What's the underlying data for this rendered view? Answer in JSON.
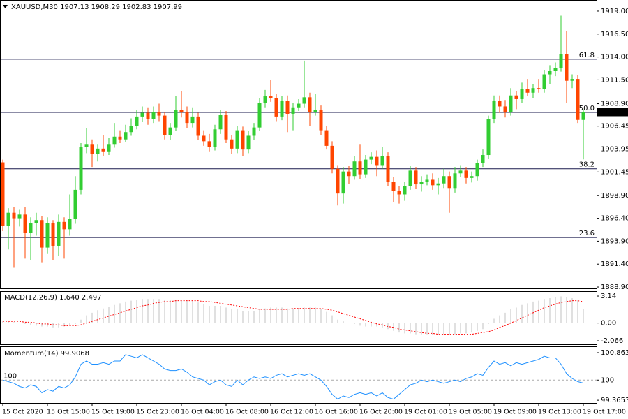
{
  "chart_data": [
    {
      "type": "candlestick",
      "title": "XAUUSD,M30 1907.13 1908.29 1902.83 1907.99",
      "categories": [
        "15 Oct 2020",
        null,
        null,
        null,
        null,
        null,
        null,
        null,
        "15 Oct 15:00",
        null,
        null,
        null,
        null,
        null,
        null,
        null,
        "15 Oct 19:00",
        null,
        null,
        null,
        null,
        null,
        null,
        null,
        "15 Oct 23:00",
        null,
        null,
        null,
        null,
        null,
        null,
        null,
        "16 Oct 04:00",
        null,
        null,
        null,
        null,
        null,
        null,
        null,
        "16 Oct 08:00",
        null,
        null,
        null,
        null,
        null,
        null,
        null,
        "16 Oct 12:00",
        null,
        null,
        null,
        null,
        null,
        null,
        null,
        "16 Oct 16:00",
        null,
        null,
        null,
        null,
        null,
        null,
        null,
        "16 Oct 20:00",
        null,
        null,
        null,
        null,
        null,
        null,
        null,
        "19 Oct 01:00",
        null,
        null,
        null,
        null,
        null,
        null,
        null,
        "19 Oct 05:00",
        null,
        null,
        null,
        null,
        null,
        null,
        null,
        "19 Oct 09:00",
        null,
        null,
        null,
        null,
        null,
        null,
        null,
        "19 Oct 13:00",
        null,
        null,
        null,
        null,
        null,
        null,
        null,
        "19 Oct 17:00"
      ],
      "candles": [
        [
          1902.5,
          1902.8,
          1895.0,
          1895.6
        ],
        [
          1895.6,
          1897.5,
          1893.0,
          1897.0
        ],
        [
          1897.0,
          1897.6,
          1891.0,
          1896.4
        ],
        [
          1896.4,
          1897.4,
          1895.5,
          1896.8
        ],
        [
          1896.8,
          1897.6,
          1892.0,
          1894.8
        ],
        [
          1894.8,
          1896.5,
          1891.8,
          1895.9
        ],
        [
          1895.9,
          1897.0,
          1894.5,
          1896.2
        ],
        [
          1896.2,
          1896.6,
          1891.6,
          1893.2
        ],
        [
          1893.2,
          1896.5,
          1892.5,
          1895.9
        ],
        [
          1895.9,
          1896.2,
          1891.8,
          1893.4
        ],
        [
          1893.4,
          1896.8,
          1892.3,
          1896.0
        ],
        [
          1896.0,
          1896.5,
          1892.0,
          1895.2
        ],
        [
          1895.2,
          1899.0,
          1894.5,
          1896.3
        ],
        [
          1896.3,
          1901.0,
          1895.8,
          1899.5
        ],
        [
          1899.5,
          1904.6,
          1899.0,
          1904.2
        ],
        [
          1904.2,
          1906.2,
          1903.5,
          1904.5
        ],
        [
          1904.5,
          1905.0,
          1902.0,
          1903.4
        ],
        [
          1903.4,
          1904.5,
          1902.6,
          1904.0
        ],
        [
          1904.0,
          1905.5,
          1903.2,
          1903.7
        ],
        [
          1903.7,
          1905.2,
          1903.3,
          1904.5
        ],
        [
          1904.5,
          1906.8,
          1904.1,
          1905.3
        ],
        [
          1905.3,
          1906.0,
          1904.6,
          1905.0
        ],
        [
          1905.0,
          1906.6,
          1904.7,
          1905.8
        ],
        [
          1905.8,
          1907.3,
          1905.4,
          1906.5
        ],
        [
          1906.5,
          1908.2,
          1906.1,
          1907.5
        ],
        [
          1907.5,
          1908.6,
          1906.9,
          1907.9
        ],
        [
          1907.9,
          1908.5,
          1906.6,
          1907.2
        ],
        [
          1907.2,
          1908.6,
          1906.8,
          1908.0
        ],
        [
          1908.0,
          1908.9,
          1907.0,
          1907.6
        ],
        [
          1907.6,
          1908.0,
          1905.0,
          1905.5
        ],
        [
          1905.5,
          1906.8,
          1904.9,
          1906.3
        ],
        [
          1906.3,
          1909.7,
          1905.9,
          1908.2
        ],
        [
          1908.2,
          1910.3,
          1907.4,
          1908.0
        ],
        [
          1908.0,
          1908.6,
          1906.2,
          1906.8
        ],
        [
          1906.8,
          1908.5,
          1906.3,
          1907.5
        ],
        [
          1907.5,
          1907.9,
          1904.9,
          1905.4
        ],
        [
          1905.4,
          1906.0,
          1904.3,
          1904.8
        ],
        [
          1904.8,
          1905.6,
          1903.7,
          1904.2
        ],
        [
          1904.2,
          1906.6,
          1903.8,
          1906.1
        ],
        [
          1906.1,
          1908.2,
          1905.6,
          1907.7
        ],
        [
          1907.7,
          1908.1,
          1904.6,
          1905.0
        ],
        [
          1905.0,
          1905.5,
          1903.4,
          1904.0
        ],
        [
          1904.0,
          1906.5,
          1903.5,
          1906.0
        ],
        [
          1906.0,
          1906.4,
          1903.2,
          1903.9
        ],
        [
          1903.9,
          1905.9,
          1903.5,
          1905.4
        ],
        [
          1905.4,
          1906.8,
          1904.9,
          1906.3
        ],
        [
          1906.3,
          1909.5,
          1905.9,
          1909.0
        ],
        [
          1909.0,
          1910.4,
          1908.5,
          1909.7
        ],
        [
          1909.7,
          1911.5,
          1909.1,
          1909.5
        ],
        [
          1909.5,
          1910.0,
          1907.0,
          1907.5
        ],
        [
          1907.5,
          1909.7,
          1907.1,
          1909.2
        ],
        [
          1909.2,
          1909.8,
          1905.8,
          1907.8
        ],
        [
          1907.8,
          1909.0,
          1906.0,
          1908.5
        ],
        [
          1908.5,
          1909.4,
          1908.1,
          1908.9
        ],
        [
          1908.9,
          1913.6,
          1908.5,
          1909.6
        ],
        [
          1909.6,
          1910.1,
          1906.5,
          1908.0
        ],
        [
          1908.0,
          1910.0,
          1907.6,
          1908.2
        ],
        [
          1908.2,
          1908.7,
          1905.5,
          1906.0
        ],
        [
          1906.0,
          1906.5,
          1903.9,
          1904.3
        ],
        [
          1904.3,
          1904.8,
          1901.3,
          1901.8
        ],
        [
          1901.8,
          1902.2,
          1897.8,
          1899.1
        ],
        [
          1899.1,
          1902.0,
          1898.0,
          1901.5
        ],
        [
          1901.5,
          1902.1,
          1900.1,
          1901.0
        ],
        [
          1901.0,
          1903.2,
          1900.6,
          1902.6
        ],
        [
          1902.6,
          1904.5,
          1900.7,
          1901.2
        ],
        [
          1901.2,
          1903.3,
          1900.8,
          1902.8
        ],
        [
          1902.8,
          1903.6,
          1902.3,
          1903.1
        ],
        [
          1903.1,
          1903.8,
          1901.0,
          1902.2
        ],
        [
          1902.2,
          1904.2,
          1901.8,
          1903.2
        ],
        [
          1903.2,
          1903.6,
          1899.9,
          1900.4
        ],
        [
          1900.4,
          1900.9,
          1898.2,
          1899.4
        ],
        [
          1899.4,
          1899.9,
          1898.0,
          1899.0
        ],
        [
          1899.0,
          1900.4,
          1898.3,
          1899.9
        ],
        [
          1899.9,
          1902.1,
          1899.5,
          1901.6
        ],
        [
          1901.6,
          1902.0,
          1899.6,
          1900.1
        ],
        [
          1900.1,
          1901.0,
          1899.3,
          1900.4
        ],
        [
          1900.4,
          1901.2,
          1900.0,
          1900.6
        ],
        [
          1900.6,
          1901.3,
          1899.5,
          1900.0
        ],
        [
          1900.0,
          1900.8,
          1899.0,
          1900.2
        ],
        [
          1900.2,
          1901.8,
          1899.7,
          1901.0
        ],
        [
          1901.0,
          1901.5,
          1897.0,
          1899.7
        ],
        [
          1899.7,
          1902.0,
          1899.2,
          1901.3
        ],
        [
          1901.3,
          1902.2,
          1900.9,
          1901.6
        ],
        [
          1901.6,
          1902.0,
          1900.2,
          1900.8
        ],
        [
          1900.8,
          1901.5,
          1900.3,
          1901.0
        ],
        [
          1901.0,
          1902.8,
          1900.5,
          1902.4
        ],
        [
          1902.4,
          1903.9,
          1902.0,
          1903.3
        ],
        [
          1903.3,
          1907.6,
          1902.9,
          1907.2
        ],
        [
          1907.2,
          1909.8,
          1906.8,
          1909.2
        ],
        [
          1909.2,
          1909.8,
          1907.9,
          1908.6
        ],
        [
          1908.6,
          1909.3,
          1907.4,
          1908.0
        ],
        [
          1908.0,
          1910.6,
          1907.6,
          1909.8
        ],
        [
          1909.8,
          1910.3,
          1908.3,
          1909.4
        ],
        [
          1909.4,
          1911.2,
          1909.0,
          1910.5
        ],
        [
          1910.5,
          1911.6,
          1909.7,
          1910.1
        ],
        [
          1910.1,
          1911.0,
          1909.5,
          1910.6
        ],
        [
          1910.6,
          1911.6,
          1910.1,
          1910.5
        ],
        [
          1910.5,
          1912.6,
          1910.1,
          1912.1
        ],
        [
          1912.1,
          1913.1,
          1911.0,
          1912.5
        ],
        [
          1912.5,
          1913.4,
          1911.9,
          1912.8
        ],
        [
          1912.8,
          1918.5,
          1912.4,
          1914.3
        ],
        [
          1914.3,
          1916.8,
          1909.0,
          1911.4
        ],
        [
          1911.4,
          1912.1,
          1910.6,
          1911.6
        ],
        [
          1911.6,
          1912.0,
          1906.8,
          1907.13
        ],
        [
          1907.13,
          1908.29,
          1902.83,
          1907.99
        ]
      ],
      "up_color": "#32cd32",
      "down_color": "#ff4500",
      "levels": [
        {
          "label": "61.8",
          "value": 1913.75
        },
        {
          "label": "50.0",
          "value": 1907.95
        },
        {
          "label": "38.2",
          "value": 1901.8
        },
        {
          "label": "23.6",
          "value": 1894.3
        }
      ],
      "level_color": "#1a1a4e",
      "ylim": [
        1888.75,
        1920.14
      ],
      "yticks": [
        {
          "value": 1919.0,
          "label": "1919.00"
        },
        {
          "value": 1916.5,
          "label": "1916.50"
        },
        {
          "value": 1914.0,
          "label": "1914.00"
        },
        {
          "value": 1911.5,
          "label": "1911.50"
        },
        {
          "value": 1908.9,
          "label": "1908.90"
        },
        {
          "value": 1906.45,
          "label": "1906.45"
        },
        {
          "value": 1903.95,
          "label": "1903.95"
        },
        {
          "value": 1901.45,
          "label": "1901.45"
        },
        {
          "value": 1898.9,
          "label": "1898.90"
        },
        {
          "value": 1896.4,
          "label": "1896.40"
        },
        {
          "value": 1893.9,
          "label": "1893.90"
        },
        {
          "value": 1891.4,
          "label": "1891.40"
        },
        {
          "value": 1888.9,
          "label": "1888.90"
        }
      ]
    },
    {
      "type": "macd",
      "title": "MACD(12,26,9) 1.640 2.497",
      "series": [
        {
          "name": "MACD",
          "color": "#c0c0c0",
          "values": [
            0.3,
            0.2,
            0.1,
            0.0,
            -0.1,
            -0.2,
            -0.3,
            -0.4,
            -0.4,
            -0.5,
            -0.5,
            -0.4,
            -0.3,
            -0.1,
            0.4,
            0.9,
            1.2,
            1.5,
            1.7,
            1.9,
            2.1,
            2.3,
            2.5,
            2.6,
            2.7,
            2.8,
            2.8,
            2.8,
            2.8,
            2.7,
            2.7,
            2.7,
            2.7,
            2.6,
            2.6,
            2.4,
            2.2,
            2.0,
            2.0,
            2.0,
            1.8,
            1.6,
            1.6,
            1.4,
            1.4,
            1.4,
            1.6,
            1.7,
            1.8,
            1.8,
            1.8,
            1.7,
            1.7,
            1.7,
            1.8,
            1.8,
            1.8,
            1.6,
            1.3,
            0.9,
            0.4,
            0.2,
            0.0,
            -0.1,
            -0.3,
            -0.4,
            -0.4,
            -0.4,
            -0.5,
            -0.7,
            -0.9,
            -1.1,
            -1.2,
            -1.2,
            -1.3,
            -1.3,
            -1.3,
            -1.4,
            -1.4,
            -1.3,
            -1.4,
            -1.3,
            -1.2,
            -1.2,
            -1.1,
            -0.9,
            -0.7,
            -0.1,
            0.5,
            0.9,
            1.2,
            1.6,
            1.8,
            2.1,
            2.3,
            2.5,
            2.6,
            2.8,
            2.9,
            3.0,
            3.1,
            3.0,
            2.9,
            2.7,
            1.64
          ]
        },
        {
          "name": "Signal",
          "color": "#ff0000",
          "values": [
            0.2,
            0.2,
            0.2,
            0.2,
            0.1,
            0.1,
            0.0,
            -0.1,
            -0.1,
            -0.2,
            -0.2,
            -0.3,
            -0.3,
            -0.3,
            -0.2,
            0.0,
            0.2,
            0.4,
            0.6,
            0.8,
            1.0,
            1.2,
            1.4,
            1.6,
            1.8,
            2.0,
            2.1,
            2.3,
            2.4,
            2.5,
            2.5,
            2.6,
            2.6,
            2.6,
            2.6,
            2.6,
            2.5,
            2.5,
            2.4,
            2.3,
            2.2,
            2.1,
            2.0,
            1.9,
            1.8,
            1.7,
            1.6,
            1.6,
            1.6,
            1.6,
            1.6,
            1.6,
            1.7,
            1.7,
            1.7,
            1.7,
            1.7,
            1.7,
            1.6,
            1.5,
            1.3,
            1.1,
            0.9,
            0.7,
            0.5,
            0.3,
            0.1,
            -0.1,
            -0.2,
            -0.4,
            -0.5,
            -0.7,
            -0.8,
            -0.9,
            -1.0,
            -1.1,
            -1.2,
            -1.2,
            -1.3,
            -1.3,
            -1.3,
            -1.3,
            -1.3,
            -1.3,
            -1.3,
            -1.2,
            -1.1,
            -1.0,
            -0.8,
            -0.5,
            -0.3,
            0.0,
            0.3,
            0.6,
            0.9,
            1.2,
            1.5,
            1.8,
            2.0,
            2.2,
            2.4,
            2.5,
            2.6,
            2.6,
            2.497
          ]
        }
      ],
      "ylim": [
        -2.47,
        3.63
      ],
      "yticks": [
        3.14,
        {
          "value": 0,
          "label": "0.00"
        },
        -2.066
      ]
    },
    {
      "type": "line",
      "title": "Momentum(14) 99.9068",
      "color": "#1e90ff",
      "values": [
        100.0,
        99.95,
        99.9,
        99.8,
        99.75,
        99.85,
        99.8,
        99.6,
        99.7,
        99.65,
        99.8,
        99.75,
        99.85,
        100.1,
        100.5,
        100.6,
        100.5,
        100.5,
        100.55,
        100.5,
        100.6,
        100.6,
        100.8,
        100.75,
        100.7,
        100.8,
        100.7,
        100.6,
        100.5,
        100.35,
        100.3,
        100.3,
        100.35,
        100.25,
        100.1,
        100.05,
        100.0,
        99.85,
        99.95,
        100.0,
        99.85,
        99.8,
        100.0,
        99.85,
        100.0,
        100.1,
        100.05,
        100.1,
        100.05,
        100.15,
        100.2,
        100.1,
        100.15,
        100.2,
        100.15,
        100.2,
        100.1,
        100.0,
        99.8,
        99.55,
        99.4,
        99.5,
        99.45,
        99.55,
        99.6,
        99.55,
        99.6,
        99.5,
        99.6,
        99.45,
        99.4,
        99.55,
        99.7,
        99.85,
        99.9,
        100.0,
        99.95,
        100.0,
        99.95,
        99.9,
        99.95,
        100.0,
        99.95,
        100.05,
        100.1,
        100.2,
        100.15,
        100.4,
        100.6,
        100.5,
        100.55,
        100.45,
        100.55,
        100.5,
        100.55,
        100.6,
        100.65,
        100.75,
        100.7,
        100.7,
        100.5,
        100.2,
        100.05,
        99.95,
        99.9068
      ],
      "level": 100,
      "ylim": [
        99.28,
        101.04
      ],
      "yticks": [
        100.8639,
        100,
        99.3653
      ]
    }
  ]
}
